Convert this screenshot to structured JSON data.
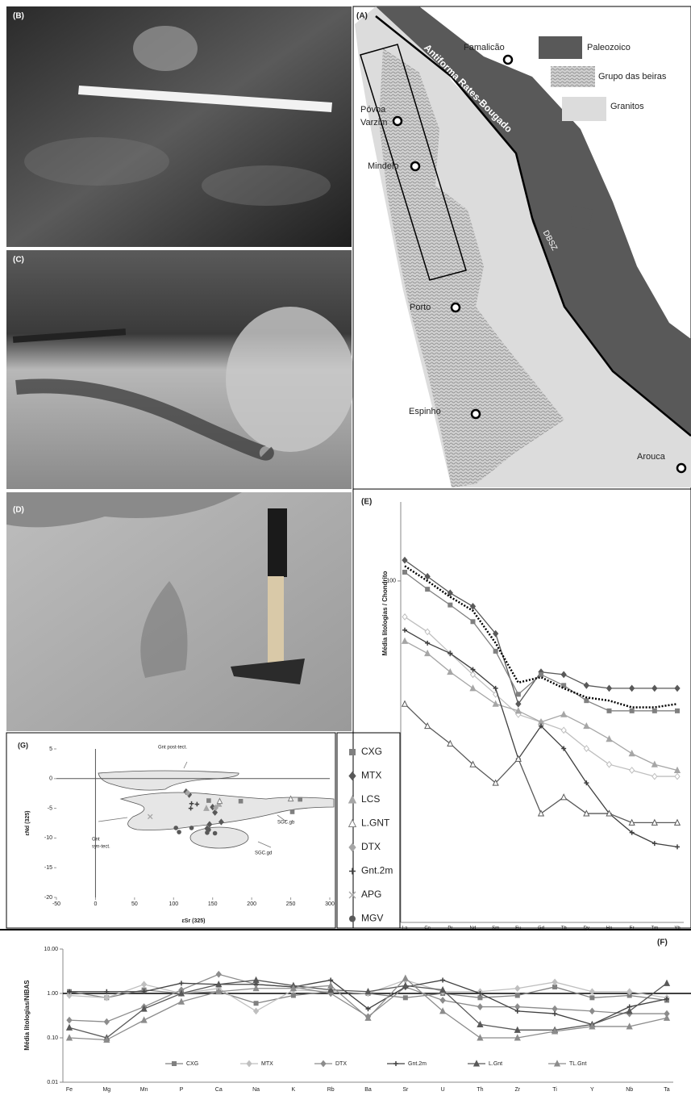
{
  "photos": [
    {
      "label": "(B)"
    },
    {
      "label": "(C)"
    },
    {
      "label": "(D)"
    }
  ],
  "map": {
    "label": "(A)",
    "legend": [
      "Paleozoico",
      "Grupo das beiras",
      "Granitos"
    ],
    "places": [
      "Famalicão",
      "Póvoa",
      "Varzim",
      "Mindelo",
      "Porto",
      "Espinho",
      "Arouca"
    ],
    "structures": [
      "Antiforma Rates-Bougado",
      "DBSZ"
    ]
  },
  "chart_data": [
    {
      "type": "line",
      "label": "(E)",
      "ylabel": "Média litologias  / Chondrito",
      "categories": [
        "La",
        "Ce",
        "Pr",
        "Nd",
        "Sm",
        "Eu",
        "Gd",
        "Tb",
        "Dy",
        "Ho",
        "Er",
        "Tm",
        "Yb"
      ],
      "log_scale": true,
      "ylim": [
        5,
        200
      ],
      "yticks": [
        100
      ],
      "series": [
        {
          "color": "#595959",
          "marker": "diamond",
          "values": [
            120,
            104,
            90,
            80,
            63,
            34,
            45,
            44,
            40,
            39,
            39,
            39,
            39
          ]
        },
        {
          "color": "#808080",
          "marker": "square",
          "values": [
            108,
            93,
            81,
            70,
            54,
            37,
            44,
            40,
            35,
            32,
            32,
            32,
            32
          ]
        },
        {
          "color": "#000000",
          "marker": "none",
          "dash": "dotted",
          "values": [
            114,
            100,
            87,
            77,
            58,
            41,
            43,
            39,
            36,
            35,
            33,
            33,
            34
          ]
        },
        {
          "color": "#bfbfbf",
          "marker": "diamond-open",
          "values": [
            73,
            64,
            53,
            44,
            37,
            31,
            29,
            27,
            23,
            20,
            19,
            18,
            18
          ]
        },
        {
          "color": "#a6a6a6",
          "marker": "triangle",
          "values": [
            59,
            53,
            45,
            39,
            34,
            32,
            29,
            31,
            28,
            25,
            22,
            20,
            19
          ]
        },
        {
          "color": "#404040",
          "marker": "plus",
          "values": [
            65,
            58,
            53,
            46,
            39,
            21,
            28,
            23,
            17,
            13,
            11,
            10,
            9.7
          ]
        },
        {
          "color": "#595959",
          "marker": "triangle-open",
          "values": [
            34,
            28,
            24,
            20,
            17,
            21,
            13,
            15,
            13,
            13,
            12,
            12,
            12
          ]
        }
      ]
    },
    {
      "type": "scatter",
      "label": "(G)",
      "xlabel": "εSr (325)",
      "ylabel": "εNd (325)",
      "annotations": [
        "Gnt post-tect.",
        "Gnt",
        "syn-tect.",
        "SGC.gb",
        "SGC.gd"
      ],
      "xlim": [
        -50,
        300
      ],
      "xticks": [
        -50,
        0,
        50,
        100,
        150,
        200,
        250,
        300
      ],
      "ylim": [
        -20,
        5
      ],
      "yticks": [
        5,
        0,
        -5,
        -10,
        -15,
        -20
      ],
      "series": [
        {
          "name": "CXG",
          "color": "#808080",
          "marker": "square",
          "x": [
            145,
            186,
            252,
            262
          ],
          "values": [
            -3.7,
            -3.8,
            -5.6,
            -3.5
          ]
        },
        {
          "name": "MTX",
          "color": "#595959",
          "marker": "diamond",
          "x": [
            116,
            120,
            150,
            153,
            161,
            146,
            143
          ],
          "values": [
            -2.2,
            -2.7,
            -4.8,
            -5.7,
            -7.3,
            -7.7,
            -8.4
          ]
        },
        {
          "name": "LCS",
          "color": "#a6a6a6",
          "marker": "triangle",
          "x": [
            142,
            158
          ],
          "values": [
            -5.0,
            -4.3
          ]
        },
        {
          "name": "L.GNT",
          "color": "#808080",
          "marker": "triangle-open",
          "x": [
            250,
            159
          ],
          "values": [
            -3.4,
            -3.8
          ]
        },
        {
          "name": "DTX",
          "color": "#a6a6a6",
          "marker": "diamond",
          "x": [
            154,
            118
          ],
          "values": [
            -4.9,
            -2.4
          ]
        },
        {
          "name": "Gnt.2m",
          "color": "#404040",
          "marker": "plus",
          "x": [
            122,
            130,
            123
          ],
          "values": [
            -5.0,
            -4.3,
            -4.2
          ]
        },
        {
          "name": "APG",
          "color": "#a6a6a6",
          "marker": "x",
          "x": [
            70
          ],
          "values": [
            -6.4
          ]
        },
        {
          "name": "MGV",
          "color": "#595959",
          "marker": "circle",
          "x": [
            103,
            107,
            123,
            143,
            153,
            145
          ],
          "values": [
            -8.3,
            -9.0,
            -8.3,
            -9.1,
            -9.2,
            -8.6
          ]
        }
      ]
    },
    {
      "type": "line",
      "label": "(F)",
      "ylabel": "Média litologias/NIBAS",
      "categories": [
        "Fe",
        "Mg",
        "Mn",
        "P",
        "Ca",
        "Na",
        "K",
        "Rb",
        "Ba",
        "Sr",
        "U",
        "Th",
        "Zr",
        "Ti",
        "Y",
        "Nb",
        "Ta"
      ],
      "log_scale": true,
      "ylim": [
        0.01,
        10
      ],
      "yticks": [
        0.01,
        {
          "value": 0.1,
          "label": "0.10"
        },
        {
          "value": 1,
          "label": "1.00"
        },
        {
          "value": 10,
          "label": "10.00"
        }
      ],
      "hline": 1,
      "legend_position": "bottom",
      "series": [
        {
          "name": "CXG",
          "color": "#808080",
          "marker": "square",
          "values": [
            1.1,
            0.8,
            1.2,
            1.0,
            1.1,
            0.6,
            0.9,
            1.1,
            1.0,
            0.8,
            1.0,
            0.8,
            0.9,
            1.4,
            0.8,
            0.9,
            0.7
          ]
        },
        {
          "name": "MTX",
          "color": "#bfbfbf",
          "marker": "diamond",
          "values": [
            0.9,
            0.8,
            1.6,
            1.0,
            1.3,
            0.4,
            1.2,
            1.1,
            1.0,
            2.0,
            1.1,
            1.1,
            1.3,
            1.8,
            1.1,
            1.1,
            0.8
          ]
        },
        {
          "name": "DTX",
          "color": "#8c8c8c",
          "marker": "diamond",
          "values": [
            0.25,
            0.23,
            0.5,
            1.2,
            2.7,
            1.6,
            1.4,
            1.0,
            0.3,
            1.4,
            0.7,
            0.5,
            0.5,
            0.45,
            0.4,
            0.35,
            0.35
          ]
        },
        {
          "name": "Gnt.2m",
          "color": "#404040",
          "marker": "plus",
          "values": [
            1.1,
            1.1,
            1.1,
            1.7,
            1.6,
            1.6,
            1.4,
            2.0,
            0.45,
            1.4,
            2.0,
            1.0,
            0.4,
            0.35,
            0.2,
            0.5,
            0.75
          ]
        },
        {
          "name": "L.Gnt",
          "color": "#595959",
          "marker": "triangle",
          "values": [
            0.17,
            0.1,
            0.45,
            1.0,
            1.6,
            2.0,
            1.5,
            1.2,
            1.1,
            1.5,
            1.2,
            0.2,
            0.15,
            0.15,
            0.2,
            0.4,
            1.7
          ]
        },
        {
          "name": "TL.Gnt",
          "color": "#8c8c8c",
          "marker": "triangle",
          "values": [
            0.1,
            0.09,
            0.25,
            0.65,
            1.1,
            1.3,
            1.3,
            1.5,
            0.28,
            2.2,
            0.4,
            0.1,
            0.1,
            0.14,
            0.18,
            0.18,
            0.28
          ]
        }
      ]
    }
  ]
}
